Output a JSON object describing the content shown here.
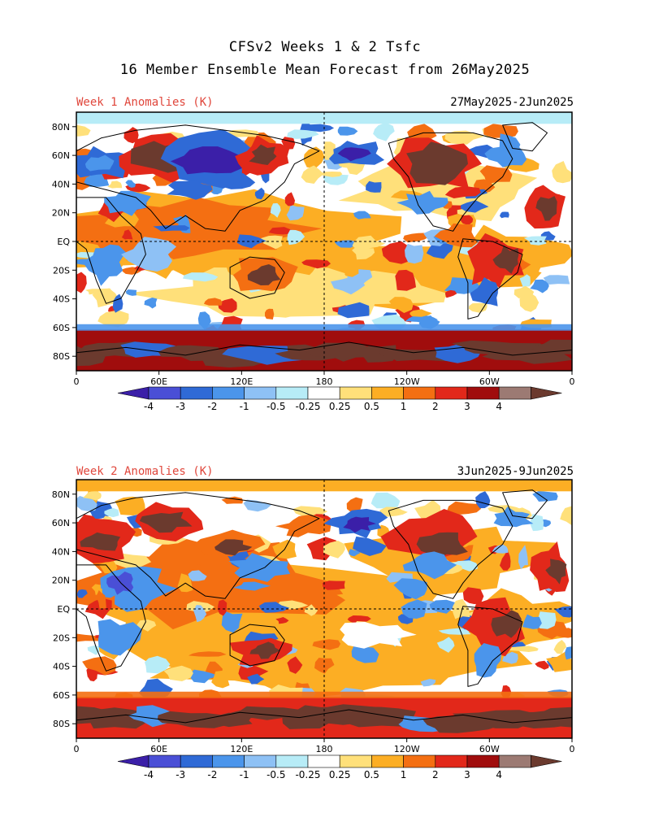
{
  "title_line1": "CFSv2 Weeks 1 & 2 Tsfc",
  "title_line2": "16 Member Ensemble Mean Forecast from 26May2025",
  "panels": [
    {
      "label": "Week 1 Anomalies (K)",
      "date_range": "27May2025-2Jun2025"
    },
    {
      "label": "Week 2 Anomalies (K)",
      "date_range": "3Jun2025-9Jun2025"
    }
  ],
  "lat_ticks": [
    "80N",
    "60N",
    "40N",
    "20N",
    "EQ",
    "20S",
    "40S",
    "60S",
    "80S"
  ],
  "lon_ticks": [
    "0",
    "60E",
    "120E",
    "180",
    "120W",
    "60W",
    "0"
  ],
  "colorbar": {
    "labels": [
      "-4",
      "-3",
      "-2",
      "-1",
      "-0.5",
      "-0.25",
      "0.25",
      "0.5",
      "1",
      "2",
      "3",
      "4"
    ],
    "colors": [
      "#3b1fa8",
      "#4a4fd6",
      "#2f6ad6",
      "#4b95eb",
      "#8ec1f5",
      "#b7ecf7",
      "#ffffff",
      "#ffe07a",
      "#fcae24",
      "#f46f12",
      "#e2281a",
      "#a00d0d",
      "#9c7a73",
      "#6b3a2e"
    ]
  }
}
